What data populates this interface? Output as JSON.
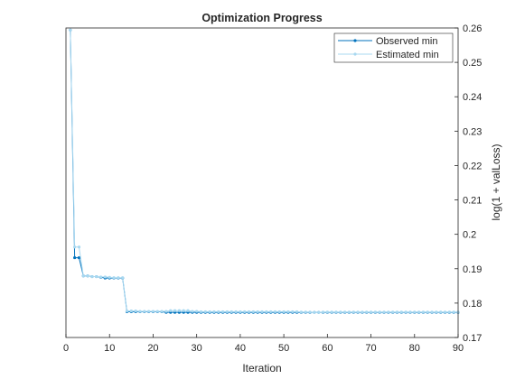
{
  "chart_data": {
    "type": "line",
    "title": "Optimization Progress",
    "xlabel": "Iteration",
    "ylabel": "log(1 + valLoss)",
    "xlim": [
      0,
      90
    ],
    "ylim": [
      0.17,
      0.26
    ],
    "xticks": [
      "0",
      "10",
      "20",
      "30",
      "40",
      "50",
      "60",
      "70",
      "80",
      "90"
    ],
    "yticks": [
      "0.17",
      "0.18",
      "0.19",
      "0.2",
      "0.21",
      "0.22",
      "0.23",
      "0.24",
      "0.25",
      "0.26"
    ],
    "y_axis_side": "right",
    "grid": false,
    "legend_position": "top-right",
    "series": [
      {
        "name": "Observed min",
        "color": "#0072BD",
        "marker": "dot",
        "x": [
          1,
          2,
          3,
          4,
          5,
          6,
          7,
          8,
          9,
          10,
          11,
          12,
          13,
          14,
          15,
          16,
          17,
          18,
          19,
          20,
          21,
          22,
          23,
          24,
          25,
          26,
          27,
          28,
          29,
          30,
          31,
          32,
          33,
          34,
          35,
          36,
          37,
          38,
          39,
          40,
          41,
          42,
          43,
          44,
          45,
          46,
          47,
          48,
          49,
          50,
          51,
          52,
          53,
          54,
          55,
          56,
          57,
          58,
          59,
          60,
          61,
          62,
          63,
          64,
          65,
          66,
          67,
          68,
          69,
          70,
          71,
          72,
          73,
          74,
          75,
          76,
          77,
          78,
          79,
          80,
          81,
          82,
          83,
          84,
          85,
          86,
          87,
          88,
          89,
          90
        ],
        "y": [
          0.2594,
          0.1932,
          0.1932,
          0.1879,
          0.1879,
          0.1877,
          0.1877,
          0.1875,
          0.1873,
          0.1873,
          0.1873,
          0.1873,
          0.1873,
          0.1775,
          0.1775,
          0.1775,
          0.1775,
          0.1775,
          0.1775,
          0.1775,
          0.1775,
          0.1775,
          0.1773,
          0.1773,
          0.1773,
          0.1773,
          0.1773,
          0.1773,
          0.1773,
          0.1773,
          0.1773,
          0.1773,
          0.1773,
          0.1773,
          0.1773,
          0.1773,
          0.1773,
          0.1773,
          0.1773,
          0.1773,
          0.1773,
          0.1773,
          0.1773,
          0.1773,
          0.1773,
          0.1773,
          0.1773,
          0.1773,
          0.1773,
          0.1773,
          0.1773,
          0.1773,
          0.1773,
          0.1773,
          0.1773,
          0.1773,
          0.1773,
          0.1773,
          0.1773,
          0.1773,
          0.1773,
          0.1773,
          0.1773,
          0.1773,
          0.1773,
          0.1773,
          0.1773,
          0.1773,
          0.1773,
          0.1773,
          0.1773,
          0.1773,
          0.1773,
          0.1773,
          0.1773,
          0.1773,
          0.1773,
          0.1773,
          0.1773,
          0.1773,
          0.1773,
          0.1773,
          0.1773,
          0.1773,
          0.1773,
          0.1773,
          0.1773,
          0.1773,
          0.1773,
          0.1773
        ]
      },
      {
        "name": "Estimated min",
        "color": "#A8D8F0",
        "marker": "dot",
        "x": [
          1,
          2,
          3,
          4,
          5,
          6,
          7,
          8,
          9,
          10,
          11,
          12,
          13,
          14,
          15,
          16,
          17,
          18,
          19,
          20,
          21,
          22,
          23,
          24,
          25,
          26,
          27,
          28,
          29,
          30,
          31,
          32,
          33,
          34,
          35,
          36,
          37,
          38,
          39,
          40,
          41,
          42,
          43,
          44,
          45,
          46,
          47,
          48,
          49,
          50,
          51,
          52,
          53,
          54,
          55,
          56,
          57,
          58,
          59,
          60,
          61,
          62,
          63,
          64,
          65,
          66,
          67,
          68,
          69,
          70,
          71,
          72,
          73,
          74,
          75,
          76,
          77,
          78,
          79,
          80,
          81,
          82,
          83,
          84,
          85,
          86,
          87,
          88,
          89,
          90
        ],
        "y": [
          0.2594,
          0.1963,
          0.1963,
          0.1879,
          0.1879,
          0.1877,
          0.1877,
          0.1876,
          0.1876,
          0.1875,
          0.1874,
          0.1874,
          0.1874,
          0.1777,
          0.1777,
          0.1777,
          0.1776,
          0.1776,
          0.1776,
          0.1776,
          0.1776,
          0.1776,
          0.1776,
          0.1778,
          0.1778,
          0.1778,
          0.1778,
          0.1778,
          0.1776,
          0.1776,
          0.1775,
          0.1775,
          0.1775,
          0.1775,
          0.1775,
          0.1775,
          0.1775,
          0.1775,
          0.1775,
          0.1775,
          0.1775,
          0.1775,
          0.1775,
          0.1775,
          0.1775,
          0.1775,
          0.1775,
          0.1775,
          0.1775,
          0.1775,
          0.1775,
          0.1775,
          0.1775,
          0.1774,
          0.1774,
          0.1774,
          0.1773,
          0.1773,
          0.1774,
          0.1774,
          0.1774,
          0.1774,
          0.1774,
          0.1774,
          0.1774,
          0.1774,
          0.1774,
          0.1774,
          0.1774,
          0.1774,
          0.1774,
          0.1774,
          0.1774,
          0.1774,
          0.1774,
          0.1774,
          0.1774,
          0.1774,
          0.1774,
          0.1774,
          0.1774,
          0.1774,
          0.1774,
          0.1774,
          0.1774,
          0.1774,
          0.1774,
          0.1774,
          0.1774,
          0.1774
        ]
      }
    ]
  }
}
